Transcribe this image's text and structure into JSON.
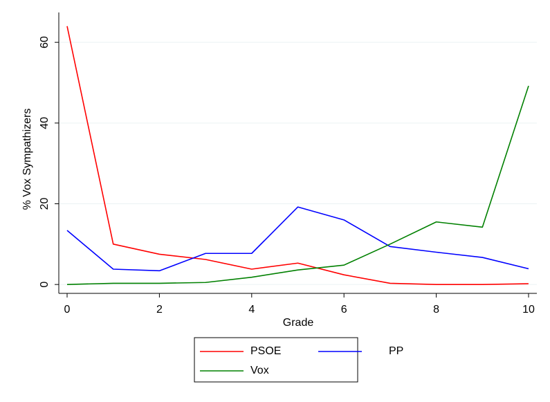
{
  "chart_data": {
    "type": "line",
    "x_label": "Grade",
    "y_label": "% Vox Sympathizers",
    "x": [
      0,
      1,
      2,
      3,
      4,
      5,
      6,
      7,
      8,
      9,
      10
    ],
    "series": [
      {
        "name": "PSOE",
        "color": "#ff0000",
        "values": [
          64,
          10,
          7.5,
          6.2,
          3.8,
          5.3,
          2.4,
          0.3,
          0,
          0,
          0.2
        ]
      },
      {
        "name": "PP",
        "color": "#0000ff",
        "values": [
          13.4,
          3.8,
          3.4,
          7.7,
          7.7,
          19.2,
          16,
          9.4,
          8,
          6.7,
          3.9
        ]
      },
      {
        "name": "Vox",
        "color": "#008000",
        "values": [
          0,
          0.3,
          0.3,
          0.5,
          1.8,
          3.6,
          4.8,
          10,
          15.5,
          14.2,
          49.2
        ]
      }
    ],
    "xlim": [
      -0.18,
      10.18
    ],
    "xticks": [
      0,
      2,
      4,
      6,
      8,
      10
    ],
    "ylim": [
      -2.2,
      67.4
    ],
    "yticks": [
      0,
      20,
      40,
      60
    ],
    "grid": true,
    "legend": "bottom"
  }
}
